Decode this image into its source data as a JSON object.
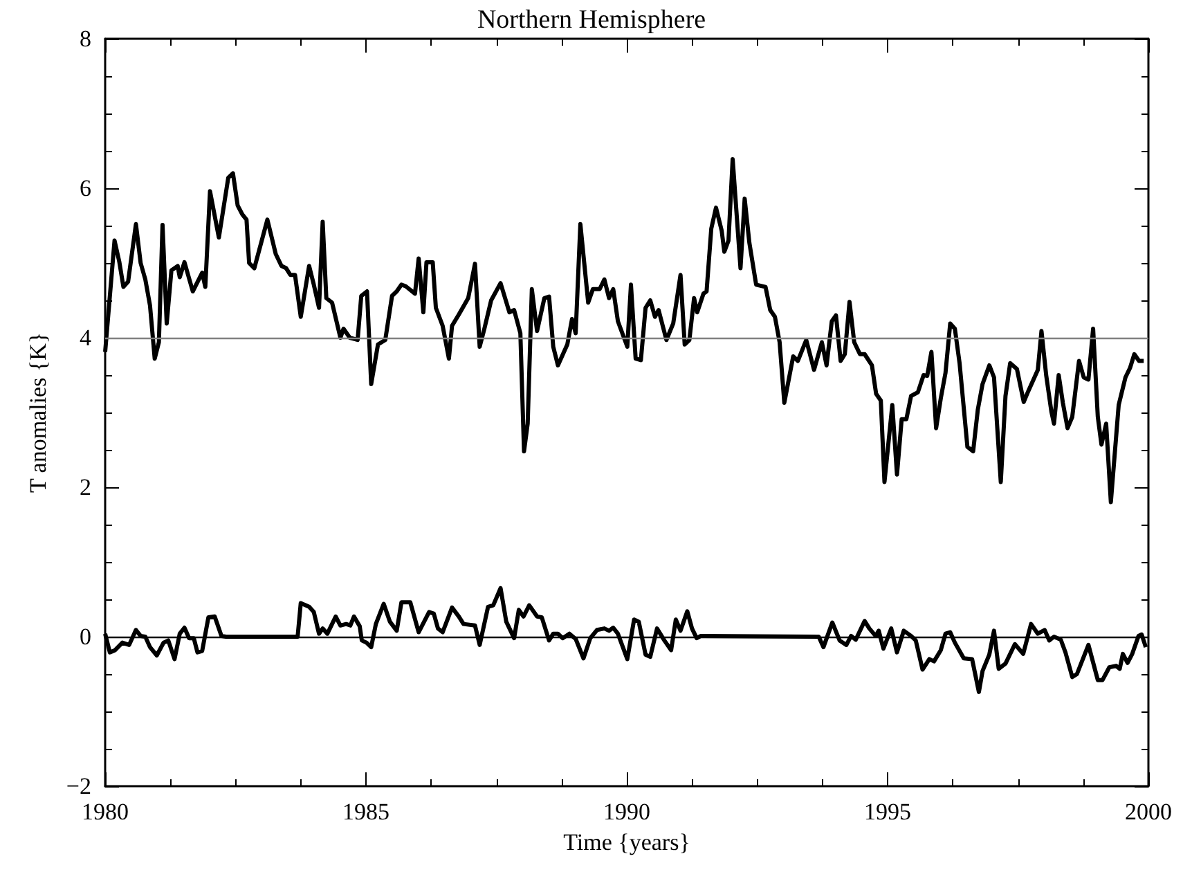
{
  "chart_data": {
    "type": "line",
    "title": "Northern Hemisphere",
    "xlabel": "Time {years}",
    "ylabel": "T anomalies {K}",
    "xlim": [
      1980,
      2000
    ],
    "xticks": [
      1980,
      1985,
      1990,
      1995,
      2000
    ],
    "ylim": [
      -2,
      8
    ],
    "yticks": [
      -2,
      0,
      2,
      4,
      6,
      8
    ],
    "grid": false,
    "marker": "none",
    "line_style": "solid",
    "ref_lines": [
      {
        "axis": "y",
        "value": 4,
        "color": "#808080"
      },
      {
        "axis": "y",
        "value": 0,
        "color": "#000000"
      }
    ],
    "series": [
      {
        "color": "#000000",
        "x": [
          1980.0,
          1980.18,
          1980.27,
          1980.35,
          1980.44,
          1980.59,
          1980.68,
          1980.77,
          1980.86,
          1980.95,
          1981.03,
          1981.1,
          1981.18,
          1981.27,
          1981.39,
          1981.43,
          1981.52,
          1981.68,
          1981.86,
          1981.92,
          1982.01,
          1982.18,
          1982.36,
          1982.45,
          1982.54,
          1982.63,
          1982.71,
          1982.76,
          1982.86,
          1983.11,
          1983.27,
          1983.38,
          1983.47,
          1983.55,
          1983.64,
          1983.75,
          1983.91,
          1984.0,
          1984.1,
          1984.17,
          1984.24,
          1984.35,
          1984.51,
          1984.57,
          1984.69,
          1984.84,
          1984.91,
          1985.02,
          1985.1,
          1985.23,
          1985.37,
          1985.5,
          1985.59,
          1985.68,
          1985.76,
          1985.94,
          1986.01,
          1986.1,
          1986.16,
          1986.28,
          1986.34,
          1986.47,
          1986.59,
          1986.65,
          1986.78,
          1986.96,
          1987.09,
          1987.18,
          1987.27,
          1987.4,
          1987.58,
          1987.75,
          1987.84,
          1987.96,
          1988.03,
          1988.1,
          1988.18,
          1988.28,
          1988.42,
          1988.51,
          1988.59,
          1988.68,
          1988.86,
          1988.95,
          1989.02,
          1989.11,
          1989.26,
          1989.35,
          1989.48,
          1989.57,
          1989.66,
          1989.74,
          1989.83,
          1990.01,
          1990.08,
          1990.17,
          1990.27,
          1990.36,
          1990.45,
          1990.54,
          1990.61,
          1990.76,
          1990.89,
          1991.03,
          1991.11,
          1991.2,
          1991.29,
          1991.35,
          1991.47,
          1991.53,
          1991.62,
          1991.71,
          1991.82,
          1991.87,
          1991.95,
          1992.03,
          1992.18,
          1992.26,
          1992.35,
          1992.48,
          1992.66,
          1992.75,
          1992.84,
          1992.93,
          1993.02,
          1993.19,
          1993.28,
          1993.44,
          1993.59,
          1993.74,
          1993.83,
          1993.93,
          1994.01,
          1994.1,
          1994.18,
          1994.27,
          1994.36,
          1994.47,
          1994.56,
          1994.7,
          1994.78,
          1994.87,
          1994.94,
          1995.09,
          1995.18,
          1995.27,
          1995.36,
          1995.45,
          1995.58,
          1995.69,
          1995.76,
          1995.84,
          1995.93,
          1996.02,
          1996.11,
          1996.2,
          1996.29,
          1996.38,
          1996.53,
          1996.64,
          1996.73,
          1996.82,
          1996.95,
          1997.04,
          1997.17,
          1997.26,
          1997.35,
          1997.48,
          1997.61,
          1997.7,
          1997.88,
          1997.95,
          1998.04,
          1998.14,
          1998.19,
          1998.28,
          1998.36,
          1998.45,
          1998.54,
          1998.67,
          1998.76,
          1998.85,
          1998.94,
          1999.03,
          1999.1,
          1999.19,
          1999.28,
          1999.43,
          1999.56,
          1999.65,
          1999.73,
          1999.82,
          1999.91
        ],
        "values": [
          3.81,
          5.3,
          5.02,
          4.68,
          4.75,
          5.52,
          5.0,
          4.78,
          4.43,
          3.72,
          3.94,
          5.51,
          4.19,
          4.9,
          4.96,
          4.81,
          5.01,
          4.62,
          4.87,
          4.68,
          5.96,
          5.34,
          6.14,
          6.2,
          5.77,
          5.65,
          5.58,
          5.0,
          4.93,
          5.58,
          5.12,
          4.96,
          4.93,
          4.84,
          4.84,
          4.28,
          4.96,
          4.71,
          4.4,
          5.55,
          4.53,
          4.47,
          4.0,
          4.12,
          4.0,
          3.97,
          4.56,
          4.62,
          3.38,
          3.91,
          3.97,
          4.56,
          4.62,
          4.71,
          4.69,
          4.59,
          5.06,
          4.34,
          5.01,
          5.01,
          4.4,
          4.16,
          3.72,
          4.16,
          4.31,
          4.53,
          4.99,
          3.88,
          4.12,
          4.5,
          4.73,
          4.34,
          4.37,
          4.06,
          2.48,
          2.85,
          4.65,
          4.09,
          4.53,
          4.55,
          3.88,
          3.63,
          3.91,
          4.25,
          4.06,
          5.52,
          4.47,
          4.65,
          4.65,
          4.78,
          4.53,
          4.65,
          4.22,
          3.88,
          4.71,
          3.72,
          3.7,
          4.4,
          4.5,
          4.28,
          4.37,
          3.97,
          4.19,
          4.84,
          3.91,
          3.97,
          4.53,
          4.34,
          4.59,
          4.62,
          5.46,
          5.74,
          5.43,
          5.15,
          5.3,
          6.39,
          4.93,
          5.86,
          5.27,
          4.71,
          4.68,
          4.37,
          4.28,
          3.94,
          3.13,
          3.75,
          3.69,
          3.97,
          3.57,
          3.94,
          3.63,
          4.22,
          4.3,
          3.69,
          3.78,
          4.48,
          3.94,
          3.78,
          3.78,
          3.63,
          3.25,
          3.16,
          2.07,
          3.1,
          2.17,
          2.91,
          2.91,
          3.22,
          3.27,
          3.5,
          3.49,
          3.81,
          2.79,
          3.19,
          3.53,
          4.19,
          4.12,
          3.66,
          2.54,
          2.48,
          3.04,
          3.38,
          3.63,
          3.47,
          2.07,
          3.22,
          3.66,
          3.58,
          3.14,
          3.29,
          3.57,
          4.09,
          3.5,
          3.01,
          2.85,
          3.5,
          3.13,
          2.79,
          2.94,
          3.69,
          3.47,
          3.44,
          4.12,
          2.94,
          2.57,
          2.85,
          1.8,
          3.1,
          3.47,
          3.6,
          3.78,
          3.69,
          3.69
        ]
      },
      {
        "color": "#000000",
        "x": [
          1980.0,
          1980.09,
          1980.19,
          1980.33,
          1980.46,
          1980.59,
          1980.68,
          1980.77,
          1980.86,
          1980.99,
          1981.12,
          1981.21,
          1981.33,
          1981.43,
          1981.52,
          1981.61,
          1981.7,
          1981.77,
          1981.86,
          1981.98,
          1982.1,
          1982.23,
          1982.32,
          1983.69,
          1983.75,
          1983.91,
          1984.0,
          1984.1,
          1984.17,
          1984.26,
          1984.42,
          1984.51,
          1984.62,
          1984.7,
          1984.77,
          1984.88,
          1984.92,
          1985.01,
          1985.1,
          1985.19,
          1985.34,
          1985.46,
          1985.59,
          1985.68,
          1985.85,
          1986.01,
          1986.21,
          1986.3,
          1986.38,
          1986.47,
          1986.65,
          1986.78,
          1986.87,
          1987.09,
          1987.18,
          1987.34,
          1987.44,
          1987.58,
          1987.69,
          1987.84,
          1987.93,
          1988.02,
          1988.13,
          1988.28,
          1988.37,
          1988.51,
          1988.59,
          1988.68,
          1988.77,
          1988.9,
          1989.02,
          1989.17,
          1989.3,
          1989.43,
          1989.57,
          1989.66,
          1989.74,
          1989.83,
          1990.01,
          1990.14,
          1990.23,
          1990.36,
          1990.45,
          1990.58,
          1990.72,
          1990.85,
          1990.94,
          1991.03,
          1991.16,
          1991.25,
          1991.34,
          1991.42,
          1993.68,
          1993.77,
          1993.94,
          1994.08,
          1994.21,
          1994.3,
          1994.39,
          1994.56,
          1994.65,
          1994.77,
          1994.83,
          1994.92,
          1995.07,
          1995.18,
          1995.31,
          1995.45,
          1995.54,
          1995.67,
          1995.8,
          1995.89,
          1996.02,
          1996.11,
          1996.2,
          1996.29,
          1996.46,
          1996.62,
          1996.75,
          1996.82,
          1996.95,
          1997.04,
          1997.13,
          1997.26,
          1997.44,
          1997.6,
          1997.75,
          1997.88,
          1998.01,
          1998.1,
          1998.19,
          1998.32,
          1998.41,
          1998.54,
          1998.63,
          1998.85,
          1999.03,
          1999.12,
          1999.25,
          1999.38,
          1999.45,
          1999.51,
          1999.6,
          1999.69,
          1999.81,
          1999.87,
          1999.95
        ],
        "values": [
          0.04,
          -0.21,
          -0.18,
          -0.08,
          -0.11,
          0.09,
          0.01,
          0.0,
          -0.14,
          -0.25,
          -0.08,
          -0.05,
          -0.3,
          0.04,
          0.12,
          -0.02,
          -0.02,
          -0.21,
          -0.19,
          0.26,
          0.27,
          0.01,
          0.0,
          0.0,
          0.45,
          0.4,
          0.33,
          0.04,
          0.11,
          0.04,
          0.27,
          0.15,
          0.17,
          0.15,
          0.27,
          0.14,
          -0.05,
          -0.08,
          -0.14,
          0.17,
          0.44,
          0.2,
          0.08,
          0.46,
          0.46,
          0.06,
          0.33,
          0.31,
          0.11,
          0.06,
          0.39,
          0.27,
          0.17,
          0.15,
          -0.11,
          0.4,
          0.42,
          0.65,
          0.2,
          -0.02,
          0.36,
          0.27,
          0.42,
          0.27,
          0.26,
          -0.05,
          0.04,
          0.04,
          -0.02,
          0.04,
          -0.03,
          -0.29,
          -0.02,
          0.09,
          0.11,
          0.08,
          0.12,
          0.04,
          -0.3,
          0.23,
          0.2,
          -0.24,
          -0.27,
          0.11,
          -0.05,
          -0.18,
          0.23,
          0.08,
          0.34,
          0.11,
          -0.02,
          0.01,
          0.0,
          -0.14,
          0.19,
          -0.05,
          -0.11,
          0.01,
          -0.04,
          0.21,
          0.11,
          0.01,
          0.08,
          -0.16,
          0.11,
          -0.21,
          0.08,
          0.01,
          -0.05,
          -0.44,
          -0.3,
          -0.33,
          -0.18,
          0.04,
          0.06,
          -0.08,
          -0.29,
          -0.3,
          -0.74,
          -0.46,
          -0.24,
          0.08,
          -0.43,
          -0.36,
          -0.1,
          -0.23,
          0.17,
          0.04,
          0.09,
          -0.05,
          0.0,
          -0.04,
          -0.21,
          -0.54,
          -0.5,
          -0.11,
          -0.58,
          -0.58,
          -0.41,
          -0.39,
          -0.43,
          -0.23,
          -0.35,
          -0.23,
          0.01,
          0.03,
          -0.14
        ]
      }
    ]
  }
}
